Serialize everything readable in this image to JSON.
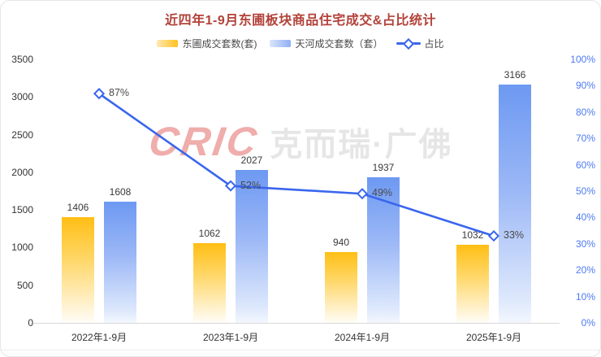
{
  "title": "近四年1-9月东圃板块商品住宅成交&占比统计",
  "watermark": {
    "logo": "CRIC",
    "text": "克而瑞·广佛"
  },
  "legend": [
    {
      "label": "东圃成交套数(套)",
      "type": "bar",
      "color": "#FFC01E"
    },
    {
      "label": "天河成交套数（套）",
      "type": "bar",
      "color": "#7CA2F3"
    },
    {
      "label": "占比",
      "type": "line",
      "color": "#3A66EE"
    }
  ],
  "chart_data": {
    "type": "bar",
    "title": "近四年1-9月东圃板块商品住宅成交&占比统计",
    "categories": [
      "2022年1-9月",
      "2023年1-9月",
      "2024年1-9月",
      "2025年1-9月"
    ],
    "series": [
      {
        "name": "东圃成交套数(套)",
        "type": "bar",
        "axis": "left",
        "color": "#FFC01E",
        "values": [
          1406,
          1062,
          940,
          1032
        ]
      },
      {
        "name": "天河成交套数（套）",
        "type": "bar",
        "axis": "left",
        "color": "#7CA2F3",
        "values": [
          1608,
          2027,
          1937,
          3166
        ]
      },
      {
        "name": "占比",
        "type": "line",
        "axis": "right",
        "color": "#3A66EE",
        "values": [
          87,
          52,
          49,
          33
        ],
        "unit": "%"
      }
    ],
    "left_axis": {
      "min": 0,
      "max": 3500,
      "step": 500
    },
    "right_axis": {
      "min": 0,
      "max": 100,
      "step": 10,
      "unit": "%"
    },
    "grid": false,
    "legend_position": "top"
  }
}
